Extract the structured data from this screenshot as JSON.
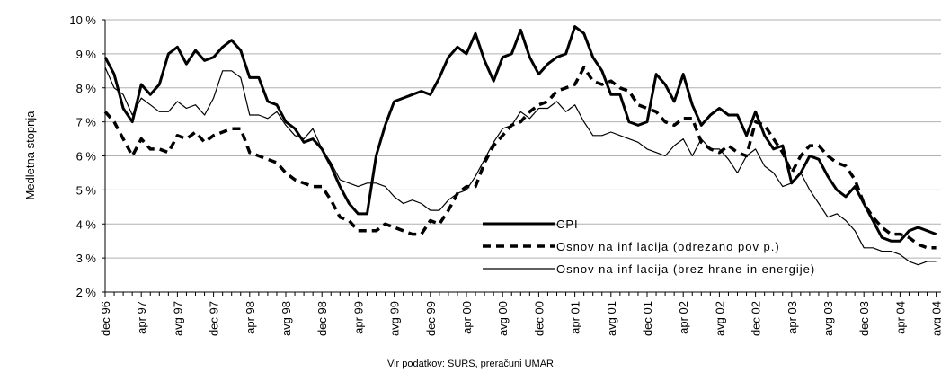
{
  "chart_data": {
    "type": "line",
    "y_label": "Medletna stopnja",
    "source": "Vir podatkov: SURS, preračuni UMAR.",
    "categories": [
      "dec 96",
      null,
      null,
      null,
      "apr 97",
      null,
      null,
      null,
      "avg 97",
      null,
      null,
      null,
      "dec 97",
      null,
      null,
      null,
      "apr 98",
      null,
      null,
      null,
      "avg 98",
      null,
      null,
      null,
      "dec 98",
      null,
      null,
      null,
      "apr 99",
      null,
      null,
      null,
      "avg 99",
      null,
      null,
      null,
      "dec 99",
      null,
      null,
      null,
      "apr 00",
      null,
      null,
      null,
      "avg 00",
      null,
      null,
      null,
      "dec 00",
      null,
      null,
      null,
      "apr 01",
      null,
      null,
      null,
      "avg 01",
      null,
      null,
      null,
      "dec 01",
      null,
      null,
      null,
      "apr 02",
      null,
      null,
      null,
      "avg 02",
      null,
      null,
      null,
      "dec 02",
      null,
      null,
      null,
      "apr 03",
      null,
      null,
      null,
      "avg 03",
      null,
      null,
      null,
      "dec 03",
      null,
      null,
      null,
      "apr 04",
      null,
      null,
      null,
      "avg 04"
    ],
    "ylim": [
      2,
      10
    ],
    "yticks": [
      {
        "value": 2,
        "label": "2 %"
      },
      {
        "value": 3,
        "label": "3 %"
      },
      {
        "value": 4,
        "label": "4 %"
      },
      {
        "value": 5,
        "label": "5 %"
      },
      {
        "value": 6,
        "label": "6 %"
      },
      {
        "value": 7,
        "label": "7 %"
      },
      {
        "value": 8,
        "label": "8 %"
      },
      {
        "value": 9,
        "label": "9 %"
      },
      {
        "value": 10,
        "label": "10 %"
      }
    ],
    "grid": true,
    "legend": "center right",
    "series": [
      {
        "name": "CPI",
        "color": "#000000",
        "line_style": "thick",
        "values": [
          8.9,
          8.4,
          7.4,
          7.0,
          8.1,
          7.8,
          8.1,
          9.0,
          9.2,
          8.7,
          9.1,
          8.8,
          8.9,
          9.2,
          9.4,
          9.1,
          8.3,
          8.3,
          7.6,
          7.5,
          7.0,
          6.8,
          6.4,
          6.5,
          6.2,
          5.7,
          5.1,
          4.6,
          4.3,
          4.3,
          6.0,
          6.9,
          7.6,
          7.7,
          7.8,
          7.9,
          7.8,
          8.3,
          8.9,
          9.2,
          9.0,
          9.6,
          8.8,
          8.2,
          8.9,
          9.0,
          9.7,
          8.9,
          8.4,
          8.7,
          8.9,
          9.0,
          9.8,
          9.6,
          8.9,
          8.5,
          7.8,
          7.8,
          7.0,
          6.9,
          7.0,
          8.4,
          8.1,
          7.6,
          8.4,
          7.5,
          6.9,
          7.2,
          7.4,
          7.2,
          7.2,
          6.6,
          7.3,
          6.6,
          6.2,
          6.3,
          5.2,
          5.5,
          6.0,
          5.9,
          5.4,
          5.0,
          4.8,
          5.1,
          4.6,
          4.1,
          3.6,
          3.5,
          3.5,
          3.8,
          3.9,
          3.8,
          3.7
        ]
      },
      {
        "name": "Osnov na inf lacija (odrezano pov p.)",
        "color": "#000000",
        "line_style": "dashed",
        "values": [
          7.3,
          7.0,
          6.5,
          6.0,
          6.5,
          6.2,
          6.2,
          6.1,
          6.6,
          6.5,
          6.7,
          6.4,
          6.6,
          6.7,
          6.8,
          6.8,
          6.1,
          6.0,
          5.9,
          5.8,
          5.5,
          5.3,
          5.2,
          5.1,
          5.1,
          4.7,
          4.2,
          4.1,
          3.8,
          3.8,
          3.8,
          4.0,
          3.9,
          3.8,
          3.7,
          3.7,
          4.1,
          4.0,
          4.4,
          4.9,
          5.1,
          5.1,
          5.8,
          6.3,
          6.6,
          6.9,
          7.0,
          7.3,
          7.5,
          7.6,
          7.9,
          8.0,
          8.1,
          8.6,
          8.2,
          8.1,
          8.2,
          8.0,
          7.9,
          7.5,
          7.4,
          7.3,
          7.0,
          6.9,
          7.1,
          7.1,
          6.4,
          6.2,
          6.1,
          6.3,
          6.1,
          6.0,
          7.0,
          6.9,
          6.5,
          6.1,
          5.5,
          6.0,
          6.3,
          6.3,
          6.0,
          5.8,
          5.7,
          5.3,
          4.6,
          4.2,
          3.9,
          3.7,
          3.7,
          3.6,
          3.4,
          3.3,
          3.3
        ]
      },
      {
        "name": "Osnov na inf lacija (brez hrane in energije)",
        "color": "#000000",
        "line_style": "thin",
        "values": [
          8.6,
          8.0,
          7.8,
          7.2,
          7.7,
          7.5,
          7.3,
          7.3,
          7.6,
          7.4,
          7.5,
          7.2,
          7.7,
          8.5,
          8.5,
          8.3,
          7.2,
          7.2,
          7.1,
          7.3,
          6.9,
          6.6,
          6.5,
          6.8,
          6.2,
          5.8,
          5.3,
          5.2,
          5.1,
          5.2,
          5.2,
          5.1,
          4.8,
          4.6,
          4.7,
          4.6,
          4.4,
          4.4,
          4.7,
          4.9,
          5.0,
          5.4,
          5.9,
          6.4,
          6.8,
          6.9,
          7.3,
          7.1,
          7.4,
          7.4,
          7.6,
          7.3,
          7.5,
          7.0,
          6.6,
          6.6,
          6.7,
          6.6,
          6.5,
          6.4,
          6.2,
          6.1,
          6.0,
          6.3,
          6.5,
          6.0,
          6.5,
          6.2,
          6.2,
          5.9,
          5.5,
          6.0,
          6.2,
          5.7,
          5.5,
          5.1,
          5.2,
          5.5,
          5.0,
          4.6,
          4.2,
          4.3,
          4.1,
          3.8,
          3.3,
          3.3,
          3.2,
          3.2,
          3.1,
          2.9,
          2.8,
          2.9,
          2.9
        ]
      }
    ]
  }
}
